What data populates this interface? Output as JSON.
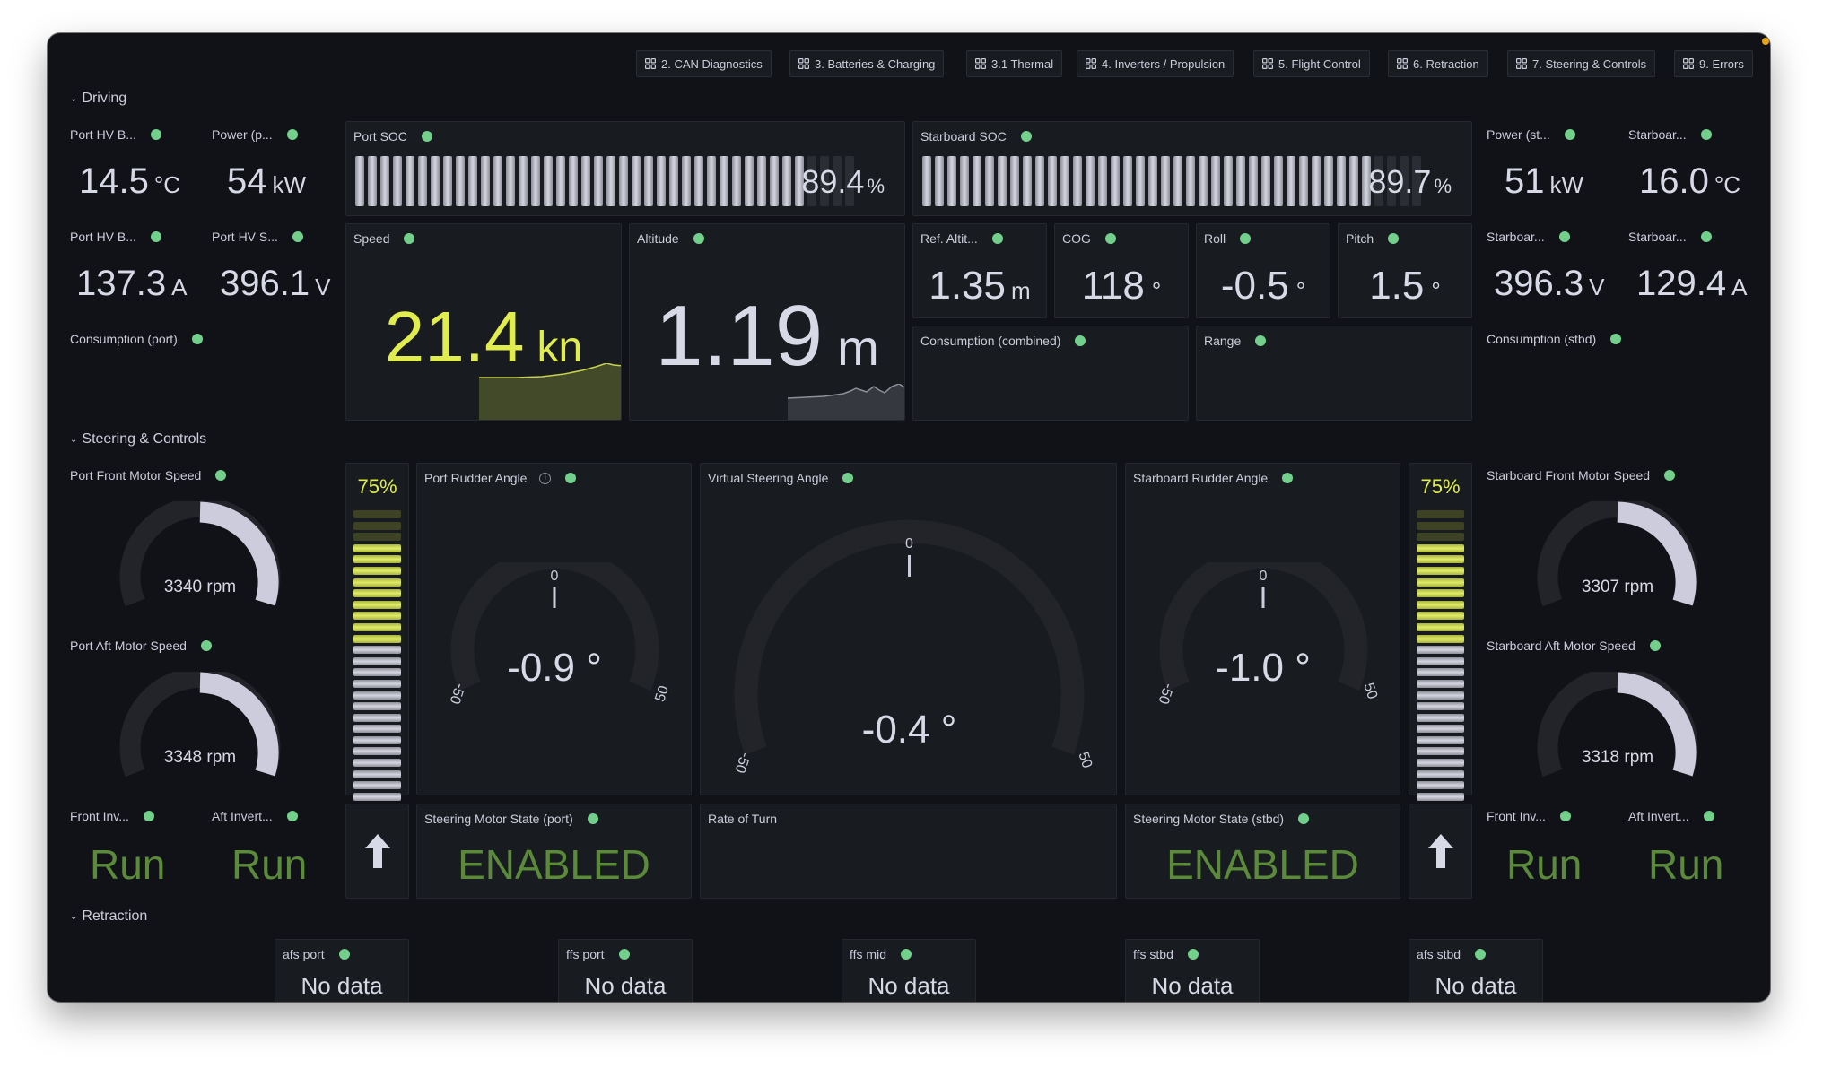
{
  "nav_links": [
    {
      "label": "2. CAN Diagnostics",
      "icon": "dashboard-grid-icon"
    },
    {
      "label": "3. Batteries & Charging",
      "icon": "dashboard-grid-icon"
    },
    {
      "label": "3.1 Thermal",
      "icon": "dashboard-grid-icon"
    },
    {
      "label": "4. Inverters / Propulsion",
      "icon": "dashboard-grid-icon"
    },
    {
      "label": "5. Flight Control",
      "icon": "dashboard-grid-icon"
    },
    {
      "label": "6. Retraction",
      "icon": "dashboard-grid-icon"
    },
    {
      "label": "7. Steering & Controls",
      "icon": "dashboard-grid-icon"
    },
    {
      "label": "9. Errors",
      "icon": "dashboard-grid-icon"
    }
  ],
  "colors": {
    "background": "#111217",
    "panel": "#181b1f",
    "text": "#ccccdc",
    "status_ok": "#73d08c",
    "speed_yellow": "#e1ec4e",
    "run_green": "#5a8a3a",
    "notification_orange": "#e8a317"
  },
  "driving": {
    "header": "Driving",
    "port_stats": [
      {
        "title": "Port HV B...",
        "value": "14.5",
        "unit": "°C"
      },
      {
        "title": "Power (p...",
        "value": "54",
        "unit": "kW"
      },
      {
        "title": "Port HV B...",
        "value": "137.3",
        "unit": "A"
      },
      {
        "title": "Port HV S...",
        "value": "396.1",
        "unit": "V"
      }
    ],
    "consumption_port": {
      "title": "Consumption (port)"
    },
    "port_soc": {
      "title": "Port SOC",
      "value": "89.4",
      "unit": "%",
      "segments_total": 40,
      "segments_lit": 36
    },
    "starboard_soc": {
      "title": "Starboard SOC",
      "value": "89.7",
      "unit": "%",
      "segments_total": 40,
      "segments_lit": 36
    },
    "speed": {
      "title": "Speed",
      "value": "21.4",
      "unit": "kn"
    },
    "altitude": {
      "title": "Altitude",
      "value": "1.19",
      "unit": "m"
    },
    "ref_altitude": {
      "title": "Ref. Altit...",
      "value": "1.35",
      "unit": "m"
    },
    "cog": {
      "title": "COG",
      "value": "118",
      "unit": "°"
    },
    "roll": {
      "title": "Roll",
      "value": "-0.5",
      "unit": "°"
    },
    "pitch": {
      "title": "Pitch",
      "value": "1.5",
      "unit": "°"
    },
    "consumption_combined": {
      "title": "Consumption (combined)"
    },
    "range": {
      "title": "Range"
    },
    "stbd_stats": [
      {
        "title": "Power (st...",
        "value": "51",
        "unit": "kW"
      },
      {
        "title": "Starboar...",
        "value": "16.0",
        "unit": "°C"
      },
      {
        "title": "Starboar...",
        "value": "396.3",
        "unit": "V"
      },
      {
        "title": "Starboar...",
        "value": "129.4",
        "unit": "A"
      }
    ],
    "consumption_stbd": {
      "title": "Consumption (stbd)"
    }
  },
  "steering": {
    "header": "Steering & Controls",
    "port_front_motor": {
      "title": "Port Front Motor Speed",
      "value": "3340 rpm"
    },
    "port_aft_motor": {
      "title": "Port Aft Motor Speed",
      "value": "3348 rpm"
    },
    "stbd_front_motor": {
      "title": "Starboard Front Motor Speed",
      "value": "3307 rpm"
    },
    "stbd_aft_motor": {
      "title": "Starboard Aft Motor Speed",
      "value": "3318 rpm"
    },
    "port_bar": {
      "value": "75%",
      "segments_off": 3,
      "segments_yellow": 9,
      "segments_gray": 14
    },
    "stbd_bar": {
      "value": "75%",
      "segments_off": 3,
      "segments_yellow": 9,
      "segments_gray": 14
    },
    "port_rudder": {
      "title": "Port Rudder Angle",
      "value": "-0.9 °",
      "min": "-50",
      "mid": "0",
      "max": "50"
    },
    "virtual_steering": {
      "title": "Virtual Steering Angle",
      "value": "-0.4 °",
      "min": "-50",
      "mid": "0",
      "max": "50"
    },
    "stbd_rudder": {
      "title": "Starboard Rudder Angle",
      "value": "-1.0 °",
      "min": "-50",
      "mid": "0",
      "max": "50"
    },
    "port_inverters": [
      {
        "title": "Front Inv...",
        "value": "Run"
      },
      {
        "title": "Aft Invert...",
        "value": "Run"
      }
    ],
    "stbd_inverters": [
      {
        "title": "Front Inv...",
        "value": "Run"
      },
      {
        "title": "Aft Invert...",
        "value": "Run"
      }
    ],
    "steering_motor_port": {
      "title": "Steering Motor State (port)",
      "value": "ENABLED"
    },
    "steering_motor_stbd": {
      "title": "Steering Motor State (stbd)",
      "value": "ENABLED"
    },
    "rate_of_turn": {
      "title": "Rate of Turn"
    }
  },
  "retraction": {
    "header": "Retraction",
    "panels": [
      {
        "title": "afs port",
        "value": "No data"
      },
      {
        "title": "ffs port",
        "value": "No data"
      },
      {
        "title": "ffs mid",
        "value": "No data"
      },
      {
        "title": "ffs stbd",
        "value": "No data"
      },
      {
        "title": "afs stbd",
        "value": "No data"
      }
    ]
  }
}
